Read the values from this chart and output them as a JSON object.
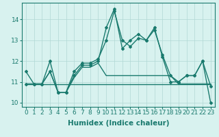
{
  "xlabel": "Humidex (Indice chaleur)",
  "x": [
    0,
    1,
    2,
    3,
    4,
    5,
    6,
    7,
    8,
    9,
    10,
    11,
    12,
    13,
    14,
    15,
    16,
    17,
    18,
    19,
    20,
    21,
    22,
    23
  ],
  "line1": [
    11.5,
    10.9,
    10.9,
    12.0,
    10.5,
    10.5,
    11.5,
    11.9,
    11.9,
    12.1,
    13.0,
    14.4,
    13.0,
    12.7,
    13.1,
    13.0,
    13.6,
    12.2,
    11.0,
    11.0,
    11.3,
    11.3,
    12.0,
    10.0
  ],
  "line2": [
    10.9,
    10.9,
    10.9,
    11.5,
    10.5,
    10.5,
    11.3,
    11.8,
    11.8,
    12.0,
    13.6,
    14.5,
    12.6,
    13.0,
    13.3,
    13.0,
    13.5,
    12.3,
    11.3,
    11.0,
    11.3,
    11.3,
    12.0,
    10.8
  ],
  "line3": [
    10.9,
    10.9,
    10.9,
    11.5,
    10.5,
    10.5,
    11.2,
    11.7,
    11.7,
    11.9,
    11.3,
    11.3,
    11.3,
    11.3,
    11.3,
    11.3,
    11.3,
    11.3,
    11.3,
    10.9,
    10.9,
    10.9,
    10.9,
    10.9
  ],
  "line4": [
    10.9,
    10.9,
    10.9,
    10.9,
    10.9,
    10.9,
    10.9,
    10.9,
    10.9,
    10.9,
    10.9,
    10.9,
    10.9,
    10.9,
    10.9,
    10.9,
    10.9,
    10.9,
    10.9,
    10.9,
    10.9,
    10.9,
    10.9,
    10.9
  ],
  "ylim": [
    9.8,
    14.8
  ],
  "yticks": [
    10,
    11,
    12,
    13,
    14
  ],
  "line_color": "#1a7a6e",
  "bg_color": "#d8f2ef",
  "grid_color": "#b0d8d4",
  "marker": "D",
  "marker_size": 2.0,
  "linewidth": 1.0,
  "tick_fontsize": 6.5,
  "xlabel_fontsize": 7.5
}
